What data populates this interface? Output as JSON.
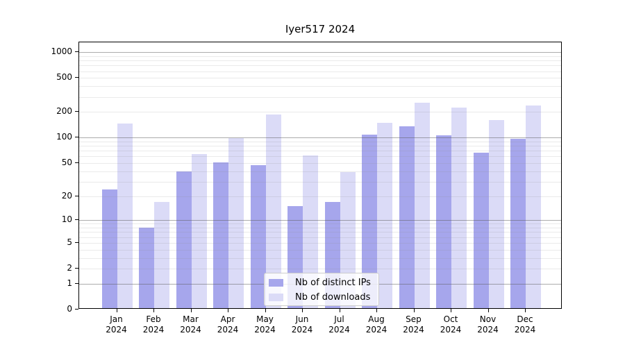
{
  "chart_data": {
    "type": "bar",
    "title": "Iyer517 2024",
    "categories": [
      "Jan",
      "Feb",
      "Mar",
      "Apr",
      "May",
      "Jun",
      "Jul",
      "Aug",
      "Sep",
      "Oct",
      "Nov",
      "Dec"
    ],
    "category_year": "2024",
    "series": [
      {
        "name": "Nb of distinct IPs",
        "color": "#a6a6ec",
        "values": [
          24,
          8,
          40,
          51,
          47,
          15,
          17,
          108,
          136,
          107,
          66,
          96
        ]
      },
      {
        "name": "Nb of downloads",
        "color": "#dbdbf7",
        "values": [
          145,
          17,
          64,
          99,
          186,
          62,
          39,
          149,
          257,
          224,
          160,
          236
        ]
      }
    ],
    "yscale": "log10(value+1)",
    "yticks": [
      0,
      1,
      2,
      5,
      10,
      20,
      50,
      100,
      200,
      500,
      1000
    ],
    "ylim": [
      0,
      1300
    ],
    "xlabel": "",
    "ylabel": "",
    "grid": {
      "major": [
        1,
        10,
        100,
        1000
      ],
      "minor": "2-9 per decade",
      "orientation": "horizontal"
    },
    "legend_position": "lower-center"
  }
}
